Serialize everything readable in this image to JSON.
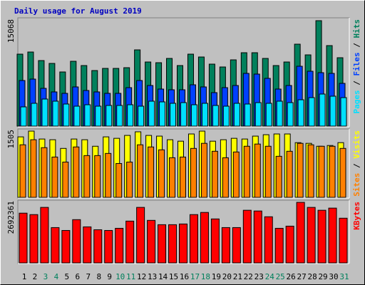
{
  "chart_data": {
    "type": "bar",
    "title": "Daily usage for August 2019",
    "categories": [
      "1",
      "2",
      "3",
      "4",
      "5",
      "6",
      "7",
      "8",
      "9",
      "10",
      "11",
      "12",
      "13",
      "14",
      "15",
      "16",
      "17",
      "18",
      "19",
      "20",
      "21",
      "22",
      "23",
      "24",
      "25",
      "26",
      "27",
      "28",
      "29",
      "30",
      "31"
    ],
    "category_colors": [
      "#000000",
      "#000000",
      "#00805c",
      "#00805c",
      "#000000",
      "#000000",
      "#000000",
      "#000000",
      "#000000",
      "#00805c",
      "#00805c",
      "#000000",
      "#000000",
      "#000000",
      "#000000",
      "#000000",
      "#00805c",
      "#00805c",
      "#000000",
      "#000000",
      "#000000",
      "#000000",
      "#000000",
      "#00805c",
      "#00805c",
      "#000000",
      "#000000",
      "#000000",
      "#000000",
      "#000000",
      "#00805c"
    ],
    "legend_separator": " / ",
    "panels": [
      {
        "ylim": [
          0,
          15068
        ],
        "yticks": [
          15068
        ],
        "series": [
          {
            "name": "Hits",
            "color": "#00805c",
            "values": [
              10283,
              10588,
              9367,
              8959,
              7738,
              9265,
              8654,
              7941,
              8247,
              8247,
              8349,
              10894,
              9163,
              9061,
              9672,
              8654,
              10283,
              9876,
              8857,
              8450,
              9468,
              10487,
              10487,
              9672,
              8654,
              9163,
              11708,
              10181,
              15068,
              11505,
              9774
            ]
          },
          {
            "name": "Files",
            "color": "#0040ff",
            "values": [
              6516,
              6719,
              5396,
              4887,
              4683,
              5600,
              5091,
              4887,
              4683,
              4683,
              5498,
              6516,
              5803,
              5294,
              5192,
              5192,
              5905,
              5600,
              4785,
              5498,
              5803,
              7534,
              7432,
              6821,
              5294,
              5803,
              8552,
              7839,
              7636,
              7534,
              6108
            ]
          },
          {
            "name": "Pages",
            "color": "#00e0ff",
            "values": [
              2749,
              3258,
              3868,
              3563,
              3156,
              2850,
              3054,
              2850,
              2952,
              2952,
              3054,
              2850,
              3563,
              3461,
              3258,
              3359,
              3054,
              3258,
              2952,
              2850,
              3258,
              3156,
              3359,
              3258,
              3563,
              3359,
              3767,
              4072,
              4581,
              4276,
              4072
            ]
          }
        ]
      },
      {
        "ylim": [
          0,
          1505
        ],
        "yticks": [
          1505
        ],
        "series": [
          {
            "name": "Visits",
            "color": "#ffff00",
            "values": [
              1374,
              1505,
              1325,
              1309,
              1112,
              1325,
              1309,
              1161,
              1374,
              1341,
              1407,
              1489,
              1407,
              1391,
              1309,
              1276,
              1440,
              1505,
              1276,
              1309,
              1341,
              1325,
              1391,
              1423,
              1440,
              1440,
              1243,
              1227,
              1161,
              1178,
              1243
            ]
          },
          {
            "name": "Sites",
            "color": "#ff8000",
            "values": [
              1194,
              1309,
              1129,
              916,
              802,
              1145,
              949,
              949,
              998,
              769,
              802,
              1194,
              1145,
              1080,
              900,
              916,
              1112,
              1227,
              1047,
              900,
              1031,
              1161,
              1211,
              1161,
              933,
              1047,
              1227,
              1194,
              1161,
              1161,
              1112
            ]
          }
        ]
      },
      {
        "ylim": [
          0,
          2692361
        ],
        "yticks": [
          2692361
        ],
        "series": [
          {
            "name": "KBytes",
            "color": "#ff0000",
            "values": [
              2211588,
              2147484,
              2468004,
              1570548,
              1442340,
              1923120,
              1602600,
              1474392,
              1442340,
              1538496,
              1859016,
              2468004,
              1891068,
              1698756,
              1698756,
              1730808,
              2147484,
              2243640,
              1955172,
              1570548,
              1570548,
              2339796,
              2307744,
              2051328,
              1538496,
              1634652,
              2692361,
              2468004,
              2339796,
              2436000,
              1987224
            ]
          }
        ]
      }
    ]
  }
}
